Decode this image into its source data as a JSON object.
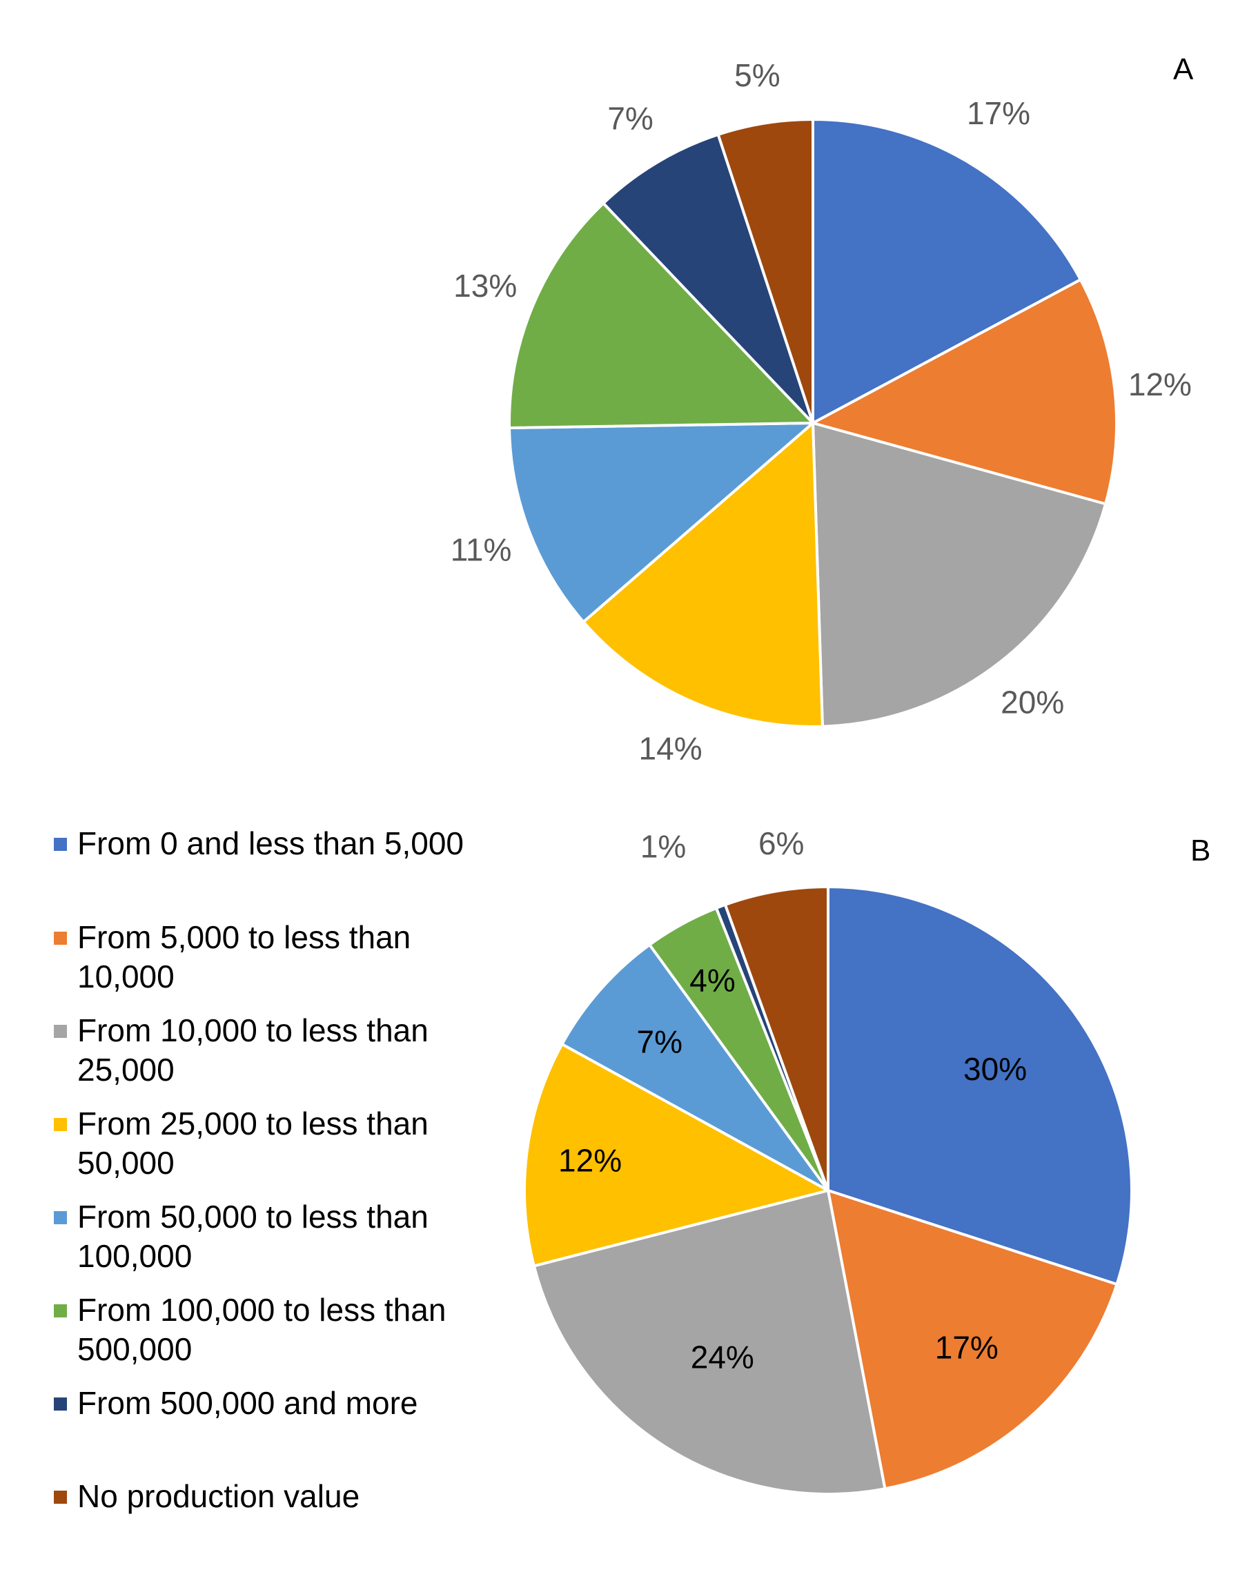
{
  "legend": [
    {
      "label": "From 0 and less than 5,000",
      "lines": [
        "From 0 and less than 5,000"
      ],
      "color": "#4472C4"
    },
    {
      "label": "From 5,000 to less than 10,000",
      "lines": [
        "From 5,000 to less than",
        "10,000"
      ],
      "color": "#ED7D31"
    },
    {
      "label": "From 10,000 to less than 25,000",
      "lines": [
        "From 10,000 to less than",
        "25,000"
      ],
      "color": "#A5A5A5"
    },
    {
      "label": "From 25,000 to less than 50,000",
      "lines": [
        "From 25,000 to less than",
        "50,000"
      ],
      "color": "#FFC000"
    },
    {
      "label": "From 50,000 to less than 100,000",
      "lines": [
        "From 50,000 to less than",
        "100,000"
      ],
      "color": "#5B9BD5"
    },
    {
      "label": "From 100,000 to less than 500,000",
      "lines": [
        "From 100,000 to less than",
        "500,000"
      ],
      "color": "#70AD47"
    },
    {
      "label": "From 500,000 and more",
      "lines": [
        "From 500,000 and more"
      ],
      "color": "#264478"
    },
    {
      "label": "No production value",
      "lines": [
        "No production value"
      ],
      "color": "#9E480E"
    }
  ],
  "chart_data": [
    {
      "type": "pie",
      "panel_label": "A",
      "categories": [
        "From 0 and less than 5,000",
        "From 5,000 to less than 10,000",
        "From 10,000 to less than 25,000",
        "From 25,000 to less than 50,000",
        "From 50,000 to less than 100,000",
        "From 100,000 to less than 500,000",
        "From 500,000 and more",
        "No production value"
      ],
      "values": [
        17,
        12,
        20,
        14,
        11,
        13,
        7,
        5
      ],
      "data_labels": [
        "17%",
        "12%",
        "20%",
        "14%",
        "11%",
        "13%",
        "7%",
        "5%"
      ],
      "label_position": "outside",
      "start": "12 o'clock, clockwise"
    },
    {
      "type": "pie",
      "panel_label": "B",
      "categories": [
        "From 0 and less than 5,000",
        "From 5,000 to less than 10,000",
        "From 10,000 to less than 25,000",
        "From 25,000 to less than 50,000",
        "From 50,000 to less than 100,000",
        "From 100,000 to less than 500,000",
        "From 500,000 and more",
        "No production value"
      ],
      "values": [
        30,
        17,
        24,
        12,
        7,
        4,
        0.5,
        5.5
      ],
      "data_labels": [
        "30%",
        "17%",
        "24%",
        "12%",
        "7%",
        "4%",
        "1%",
        "6%"
      ],
      "label_position": "inside; small slices outside",
      "start": "12 o'clock, clockwise"
    }
  ]
}
